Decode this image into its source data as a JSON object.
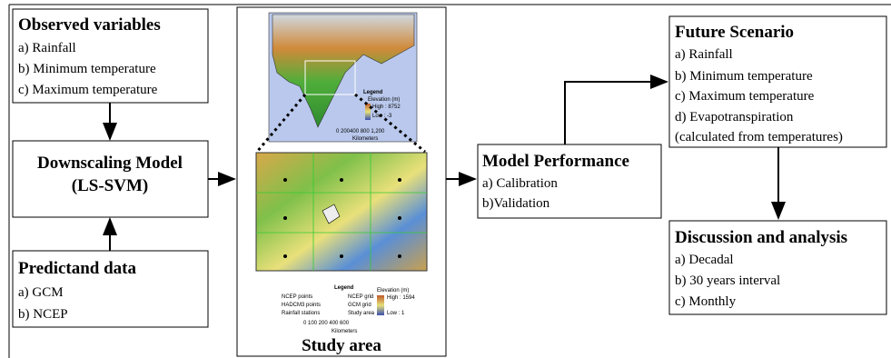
{
  "observed": {
    "title": "Observed variables",
    "items": [
      "a) Rainfall",
      "b) Minimum temperature",
      "c) Maximum temperature"
    ]
  },
  "downscaling": {
    "title": "Downscaling Model",
    "subtitle": "(LS-SVM)"
  },
  "predictand": {
    "title": "Predictand data",
    "items": [
      "a) GCM",
      "b) NCEP"
    ]
  },
  "performance": {
    "title": "Model Performance",
    "items": [
      "a) Calibration",
      "b)Validation"
    ]
  },
  "future": {
    "title": "Future Scenario",
    "items": [
      "a) Rainfall",
      "b) Minimum temperature",
      "c) Maximum temperature",
      "d) Evapotranspiration",
      "(calculated from temperatures)"
    ]
  },
  "discussion": {
    "title": "Discussion and analysis",
    "items": [
      "a) Decadal",
      "b) 30 years interval",
      "c) Monthly"
    ]
  },
  "study_area": {
    "caption": "Study area",
    "inset_legend": {
      "title": "Legend",
      "elevation": "Elevation (m)",
      "high": "High : 8752",
      "low": "Low : -3",
      "scale": "0 200400  800  1,200",
      "unit": "Kilometers"
    },
    "legend": {
      "title": "Legend",
      "items": [
        "NCEP points",
        "HADCM3 points",
        "Rainfall stations",
        "NCEP grid",
        "GCM grid",
        "Study area"
      ],
      "elevation": "Elevation (m)",
      "high": "High : 1594",
      "low": "Low : 1",
      "scale": "0   100  200      400        600",
      "unit": "Kilometers"
    }
  }
}
